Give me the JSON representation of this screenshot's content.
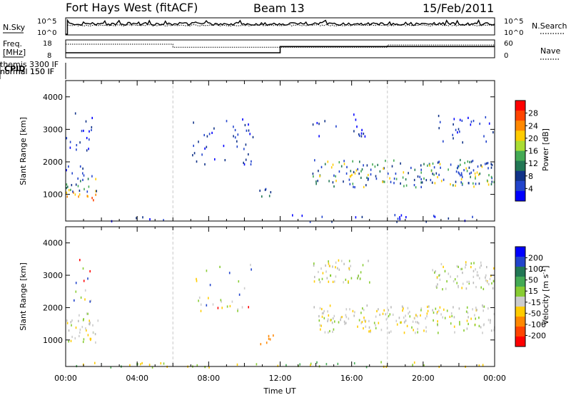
{
  "header": {
    "station": "Fort Hays West (fitACF)",
    "beam": "Beam 13",
    "date": "15/Feb/2011"
  },
  "strip_labels": {
    "nsky": "N.Sky",
    "nsky_ticks": [
      "10^5",
      "10^0"
    ],
    "nsearch": "N.Search",
    "nsearch_ticks": [
      "10^5",
      "10^0"
    ],
    "freq": "Freq.",
    "freq_unit": "[MHz]",
    "freq_ticks": [
      "18",
      "8"
    ],
    "nave": "Nave",
    "nave_ticks": [
      "60",
      "0"
    ],
    "cpid": "CPID"
  },
  "cpid_segments": [
    {
      "label": "normal 150 IF",
      "start_hour": 0
    },
    {
      "label": "themis 3300 IF",
      "start_hour": 6
    },
    {
      "label": "normal 150 IF",
      "start_hour": 18
    }
  ],
  "freq_segments": [
    {
      "start": 0,
      "end": 12,
      "mhz": 10.6
    },
    {
      "start": 12,
      "end": 24,
      "mhz": 14.4
    }
  ],
  "nave_segments": [
    {
      "start": 0,
      "end": 6,
      "value": 47
    },
    {
      "start": 6,
      "end": 18,
      "value": 36
    },
    {
      "start": 18,
      "end": 24,
      "value": 44
    }
  ],
  "chart_data": [
    {
      "type": "heatmap",
      "panel": "power",
      "ylabel": "Slant Range [km]",
      "xlabel": "Time UT",
      "xlim": [
        0,
        24
      ],
      "ylim": [
        180,
        4500
      ],
      "x_ticks": [
        "00:00",
        "04:00",
        "08:00",
        "12:00",
        "16:00",
        "20:00",
        "00:00"
      ],
      "y_ticks": [
        1000,
        2000,
        3000,
        4000
      ],
      "colorbar_label": "Power [dB]",
      "colorbar_ticks": [
        "28",
        "24",
        "20",
        "16",
        "12",
        "8",
        "4"
      ],
      "colorbar_colors": [
        "#ff0000",
        "#ff4400",
        "#ff8800",
        "#ffcc00",
        "#aadd33",
        "#44aa55",
        "#227755",
        "#113388",
        "#2244cc",
        "#0000ff"
      ],
      "regions": [
        {
          "t0": 0.0,
          "t1": 1.7,
          "r0": 800,
          "r1": 1100,
          "level": "high"
        },
        {
          "t0": 0.0,
          "t1": 1.8,
          "r0": 1100,
          "r1": 1700,
          "level": "mid"
        },
        {
          "t0": 0.0,
          "t1": 1.5,
          "r0": 1700,
          "r1": 3600,
          "level": "low"
        },
        {
          "t0": 2.5,
          "t1": 5.5,
          "r0": 200,
          "r1": 400,
          "level": "low"
        },
        {
          "t0": 7.0,
          "t1": 10.5,
          "r0": 1900,
          "r1": 3400,
          "level": "low"
        },
        {
          "t0": 10.8,
          "t1": 11.7,
          "r0": 900,
          "r1": 1200,
          "level": "lowmid"
        },
        {
          "t0": 12.5,
          "t1": 24,
          "r0": 180,
          "r1": 400,
          "level": "low"
        },
        {
          "t0": 13.8,
          "t1": 24,
          "r0": 1250,
          "r1": 2100,
          "level": "mid"
        },
        {
          "t0": 13.8,
          "t1": 17.0,
          "r0": 2800,
          "r1": 3500,
          "level": "low"
        },
        {
          "t0": 20.5,
          "t1": 24,
          "r0": 2600,
          "r1": 3500,
          "level": "low"
        }
      ]
    },
    {
      "type": "heatmap",
      "panel": "velocity",
      "ylabel": "Slant Range [km]",
      "xlabel": "Time UT",
      "xlim": [
        0,
        24
      ],
      "ylim": [
        180,
        4500
      ],
      "x_ticks": [
        "00:00",
        "04:00",
        "08:00",
        "12:00",
        "16:00",
        "20:00",
        "00:00"
      ],
      "y_ticks": [
        1000,
        2000,
        3000,
        4000
      ],
      "colorbar_label": "Velocity [m s^-1]",
      "colorbar_ticks": [
        "200",
        "100",
        "50",
        "15",
        "-15",
        "-50",
        "-100",
        "-200"
      ],
      "colorbar_colors": [
        "#0000ff",
        "#2244cc",
        "#227755",
        "#44aa55",
        "#88cc33",
        "#cccccc",
        "#ffcc00",
        "#ff8800",
        "#ff4400",
        "#ff0000"
      ],
      "regions": [
        {
          "t0": 0.0,
          "t1": 1.8,
          "r0": 800,
          "r1": 1700,
          "level": "grey"
        },
        {
          "t0": 0.0,
          "t1": 1.5,
          "r0": 1700,
          "r1": 3600,
          "level": "sparse"
        },
        {
          "t0": 7.0,
          "t1": 10.5,
          "r0": 1900,
          "r1": 3400,
          "level": "sparse"
        },
        {
          "t0": 10.8,
          "t1": 11.7,
          "r0": 900,
          "r1": 1200,
          "level": "orange"
        },
        {
          "t0": 0.5,
          "t1": 24,
          "r0": 180,
          "r1": 350,
          "level": "green"
        },
        {
          "t0": 13.8,
          "t1": 24,
          "r0": 1250,
          "r1": 2100,
          "level": "grey"
        },
        {
          "t0": 13.8,
          "t1": 17.0,
          "r0": 2800,
          "r1": 3500,
          "level": "grey"
        },
        {
          "t0": 20.5,
          "t1": 24,
          "r0": 2600,
          "r1": 3500,
          "level": "grey"
        }
      ]
    }
  ]
}
